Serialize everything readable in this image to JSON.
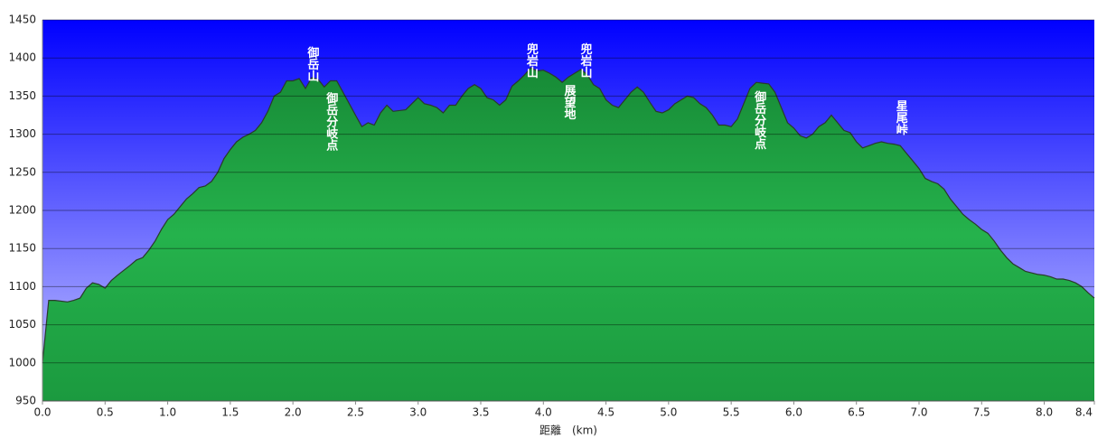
{
  "chart_data": {
    "type": "area",
    "x_label": "距離　(km)",
    "color": "#22a847",
    "grid": true,
    "xlim": [
      0,
      8.4
    ],
    "ylim": [
      950,
      1450
    ],
    "xticks": [
      {
        "value": 0,
        "label": "0.0"
      },
      0.5,
      {
        "value": 1,
        "label": "1.0"
      },
      1.5,
      {
        "value": 2,
        "label": "2.0"
      },
      2.5,
      {
        "value": 3,
        "label": "3.0"
      },
      3.5,
      {
        "value": 4,
        "label": "4.0"
      },
      4.5,
      {
        "value": 5,
        "label": "5.0"
      },
      5.5,
      {
        "value": 6,
        "label": "6.0"
      },
      6.5,
      {
        "value": 7,
        "label": "7.0"
      },
      7.5,
      {
        "value": 8,
        "label": "8.0"
      },
      8.4
    ],
    "yticks": [
      950,
      1000,
      1050,
      1100,
      1150,
      1200,
      1250,
      1300,
      1350,
      1400,
      1450
    ],
    "x": [
      0,
      0.05,
      0.1,
      0.2,
      0.25,
      0.3,
      0.35,
      0.4,
      0.45,
      0.5,
      0.55,
      0.6,
      0.7,
      0.75,
      0.8,
      0.85,
      0.9,
      0.95,
      1.0,
      1.05,
      1.1,
      1.15,
      1.2,
      1.25,
      1.3,
      1.35,
      1.4,
      1.45,
      1.5,
      1.55,
      1.6,
      1.65,
      1.7,
      1.75,
      1.8,
      1.85,
      1.9,
      1.95,
      2.0,
      2.05,
      2.1,
      2.15,
      2.2,
      2.25,
      2.3,
      2.35,
      2.4,
      2.45,
      2.5,
      2.55,
      2.6,
      2.65,
      2.7,
      2.75,
      2.8,
      2.9,
      2.95,
      3.0,
      3.05,
      3.1,
      3.15,
      3.2,
      3.25,
      3.3,
      3.35,
      3.4,
      3.45,
      3.5,
      3.55,
      3.6,
      3.65,
      3.7,
      3.75,
      3.8,
      3.85,
      3.9,
      3.95,
      4.0,
      4.05,
      4.1,
      4.15,
      4.2,
      4.25,
      4.3,
      4.35,
      4.4,
      4.45,
      4.5,
      4.55,
      4.6,
      4.65,
      4.7,
      4.75,
      4.8,
      4.85,
      4.9,
      4.95,
      5.0,
      5.05,
      5.1,
      5.15,
      5.2,
      5.25,
      5.3,
      5.35,
      5.4,
      5.45,
      5.5,
      5.55,
      5.6,
      5.65,
      5.7,
      5.75,
      5.8,
      5.85,
      5.9,
      5.95,
      6.0,
      6.05,
      6.1,
      6.15,
      6.2,
      6.25,
      6.3,
      6.35,
      6.4,
      6.45,
      6.5,
      6.55,
      6.6,
      6.65,
      6.7,
      6.75,
      6.8,
      6.85,
      6.9,
      6.95,
      7.0,
      7.05,
      7.1,
      7.15,
      7.2,
      7.25,
      7.3,
      7.35,
      7.4,
      7.45,
      7.5,
      7.55,
      7.6,
      7.65,
      7.7,
      7.75,
      7.8,
      7.85,
      7.9,
      7.95,
      8.0,
      8.05,
      8.1,
      8.15,
      8.2,
      8.25,
      8.3,
      8.35,
      8.4
    ],
    "values": [
      1000,
      1082,
      1082,
      1080,
      1082,
      1085,
      1098,
      1105,
      1103,
      1098,
      1108,
      1115,
      1128,
      1135,
      1138,
      1148,
      1160,
      1175,
      1188,
      1195,
      1205,
      1215,
      1222,
      1230,
      1232,
      1238,
      1250,
      1268,
      1280,
      1290,
      1296,
      1300,
      1305,
      1315,
      1330,
      1350,
      1355,
      1370,
      1370,
      1373,
      1360,
      1374,
      1372,
      1362,
      1370,
      1370,
      1355,
      1340,
      1325,
      1310,
      1315,
      1312,
      1328,
      1338,
      1330,
      1332,
      1340,
      1348,
      1340,
      1338,
      1335,
      1328,
      1338,
      1338,
      1350,
      1360,
      1365,
      1360,
      1348,
      1345,
      1338,
      1345,
      1363,
      1370,
      1378,
      1387,
      1383,
      1384,
      1380,
      1375,
      1368,
      1375,
      1380,
      1385,
      1378,
      1365,
      1360,
      1345,
      1338,
      1335,
      1345,
      1355,
      1362,
      1355,
      1342,
      1330,
      1328,
      1332,
      1340,
      1345,
      1350,
      1348,
      1340,
      1335,
      1325,
      1312,
      1312,
      1310,
      1320,
      1340,
      1360,
      1368,
      1367,
      1366,
      1355,
      1335,
      1315,
      1308,
      1298,
      1295,
      1300,
      1310,
      1315,
      1325,
      1315,
      1305,
      1302,
      1290,
      1282,
      1285,
      1288,
      1290,
      1288,
      1287,
      1285,
      1275,
      1265,
      1255,
      1242,
      1238,
      1235,
      1228,
      1215,
      1205,
      1195,
      1188,
      1182,
      1175,
      1170,
      1160,
      1148,
      1138,
      1130,
      1125,
      1120,
      1118,
      1116,
      1115,
      1113,
      1110,
      1110,
      1108,
      1105,
      1100,
      1092,
      1085
    ],
    "annotations": [
      {
        "text": "御岳山",
        "x": 2.15,
        "y": 1415
      },
      {
        "text": "御岳分岐点",
        "x": 2.3,
        "y": 1355
      },
      {
        "text": "兜岩山",
        "x": 3.9,
        "y": 1420
      },
      {
        "text": "展望地",
        "x": 4.2,
        "y": 1365
      },
      {
        "text": "兜岩山",
        "x": 4.33,
        "y": 1420
      },
      {
        "text": "御岳分岐点",
        "x": 5.72,
        "y": 1357
      },
      {
        "text": "星尾峠",
        "x": 6.85,
        "y": 1345
      }
    ]
  }
}
